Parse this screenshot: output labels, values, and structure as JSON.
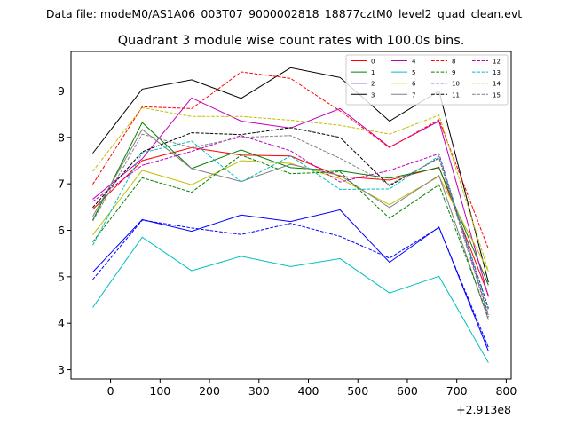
{
  "header": {
    "data_file": "Data file: modeM0/AS1A06_003T07_9000002818_18877cztM0_level2_quad_clean.evt"
  },
  "chart_data": {
    "type": "line",
    "title": "Quadrant 3 module wise count rates with 100.0s bins.",
    "xlabel": "",
    "ylabel": "",
    "offset_text": "+2.913e8",
    "xlim": [
      -80,
      810
    ],
    "ylim": [
      2.8,
      9.85
    ],
    "x_ticks": [
      0,
      100,
      200,
      300,
      400,
      500,
      600,
      700,
      800
    ],
    "y_ticks": [
      3,
      4,
      5,
      6,
      7,
      8,
      9
    ],
    "grid": false,
    "legend_position": "top-right",
    "x": [
      -36,
      64,
      164,
      264,
      364,
      464,
      564,
      664,
      764
    ],
    "series": [
      {
        "name": "0",
        "color": "#ff0000",
        "dash": "solid",
        "values": [
          6.45,
          7.5,
          7.78,
          7.62,
          7.6,
          7.16,
          7.08,
          7.36,
          4.6
        ]
      },
      {
        "name": "1",
        "color": "#008000",
        "dash": "solid",
        "values": [
          6.22,
          8.32,
          7.33,
          7.73,
          7.35,
          7.28,
          7.12,
          7.35,
          4.82
        ]
      },
      {
        "name": "2",
        "color": "#0000ff",
        "dash": "solid",
        "values": [
          5.1,
          6.23,
          5.98,
          6.33,
          6.19,
          6.44,
          5.31,
          6.07,
          3.4
        ]
      },
      {
        "name": "3",
        "color": "#000000",
        "dash": "solid",
        "values": [
          7.66,
          9.04,
          9.24,
          8.84,
          9.5,
          9.29,
          8.35,
          9.0,
          4.88
        ]
      },
      {
        "name": "4",
        "color": "#c000c0",
        "dash": "solid",
        "values": [
          6.67,
          7.54,
          8.85,
          8.35,
          8.2,
          8.62,
          7.79,
          8.35,
          4.57
        ]
      },
      {
        "name": "5",
        "color": "#00bfbf",
        "dash": "solid",
        "values": [
          4.34,
          5.85,
          5.13,
          5.44,
          5.22,
          5.39,
          4.65,
          5.01,
          3.15
        ]
      },
      {
        "name": "6",
        "color": "#bfbf00",
        "dash": "solid",
        "values": [
          5.9,
          7.29,
          6.98,
          7.5,
          7.44,
          7.11,
          6.55,
          7.16,
          5.12
        ]
      },
      {
        "name": "7",
        "color": "#808080",
        "dash": "solid",
        "values": [
          6.3,
          8.17,
          7.33,
          7.05,
          7.42,
          7.18,
          6.49,
          7.18,
          4.07
        ]
      },
      {
        "name": "8",
        "color": "#ff0000",
        "dash": "dashed",
        "values": [
          6.99,
          8.66,
          8.62,
          9.41,
          9.27,
          8.57,
          7.78,
          8.38,
          5.6
        ]
      },
      {
        "name": "9",
        "color": "#008000",
        "dash": "dashed",
        "values": [
          5.75,
          7.13,
          6.82,
          7.62,
          7.22,
          7.26,
          6.26,
          6.98,
          4.13
        ]
      },
      {
        "name": "10",
        "color": "#0000ff",
        "dash": "dashed",
        "values": [
          4.94,
          6.22,
          6.05,
          5.91,
          6.15,
          5.87,
          5.4,
          6.06,
          3.48
        ]
      },
      {
        "name": "11",
        "color": "#000000",
        "dash": "dashed",
        "values": [
          6.49,
          7.69,
          8.1,
          8.06,
          8.21,
          8.0,
          6.96,
          7.56,
          4.32
        ]
      },
      {
        "name": "12",
        "color": "#c000c0",
        "dash": "dashed",
        "values": [
          6.62,
          7.4,
          7.7,
          8.04,
          7.71,
          7.04,
          7.29,
          7.65,
          4.18
        ]
      },
      {
        "name": "13",
        "color": "#00bfbf",
        "dash": "dashed",
        "values": [
          5.68,
          7.67,
          7.92,
          7.04,
          7.6,
          6.88,
          6.89,
          7.6,
          4.28
        ]
      },
      {
        "name": "14",
        "color": "#bfbf00",
        "dash": "dashed",
        "values": [
          7.27,
          8.64,
          8.45,
          8.45,
          8.37,
          8.26,
          8.07,
          8.48,
          5.12
        ]
      },
      {
        "name": "15",
        "color": "#808080",
        "dash": "dashed",
        "values": [
          6.2,
          8.07,
          7.78,
          8.0,
          8.04,
          7.55,
          6.98,
          7.55,
          4.15
        ]
      }
    ]
  }
}
